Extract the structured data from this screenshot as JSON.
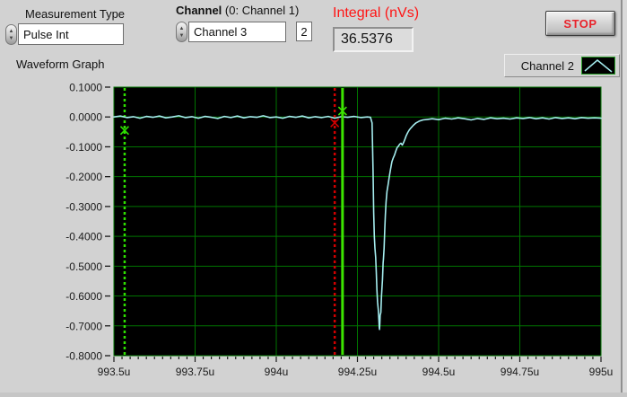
{
  "header": {
    "measurement": {
      "label": "Measurement Type",
      "value": "Pulse Int"
    },
    "channel": {
      "label_bold": "Channel",
      "label_rest": " (0: Channel 1)",
      "value": "Channel 3",
      "index_value": "2"
    },
    "integral": {
      "label": "Integral (nVs)",
      "value": "36.5376",
      "label_color": "#ff1414"
    },
    "stop_button": {
      "label": "STOP",
      "text_color": "#e8232b"
    }
  },
  "graph": {
    "title": "Waveform Graph",
    "legend": {
      "label": "Channel 2",
      "swatch_icon": "waveform-peak-icon"
    }
  },
  "chart_data": {
    "type": "line",
    "title": "Waveform Graph",
    "xlabel": "",
    "ylabel": "",
    "x_unit": "u",
    "xlim": [
      993.5,
      995.0
    ],
    "ylim": [
      -0.8,
      0.1
    ],
    "grid": true,
    "legend_position": "top-right",
    "x_ticks": [
      993.5,
      993.75,
      994,
      994.25,
      994.5,
      994.75,
      995
    ],
    "x_tick_labels": [
      "993.5u",
      "993.75u",
      "994u",
      "994.25u",
      "994.5u",
      "994.75u",
      "995u"
    ],
    "x_minor_step": 0.025,
    "y_ticks": [
      0.1,
      0.0,
      -0.1,
      -0.2,
      -0.3,
      -0.4,
      -0.5,
      -0.6,
      -0.7,
      -0.8
    ],
    "y_tick_labels": [
      "0.1000",
      "0.0000",
      "-0.1000",
      "-0.2000",
      "-0.3000",
      "-0.4000",
      "-0.5000",
      "-0.6000",
      "-0.7000",
      "-0.8000"
    ],
    "colors": {
      "plot_bg": "#000000",
      "grid": "#007400",
      "border": "#0d4d0d",
      "trace": "#a5edef",
      "tick": "#1a1a1a"
    },
    "cursors": [
      {
        "name": "cursor-green-dotted",
        "t": 993.533,
        "style": "dotted",
        "color": "#2ee000",
        "marker": [
          993.533,
          -0.045
        ]
      },
      {
        "name": "cursor-red-dotted",
        "t": 994.18,
        "style": "dotted",
        "color": "#d10000",
        "marker": [
          994.18,
          -0.02
        ]
      },
      {
        "name": "cursor-green-solid",
        "t": 994.204,
        "style": "solid",
        "color": "#3ce300",
        "marker": [
          994.204,
          0.02
        ]
      }
    ],
    "series": [
      {
        "name": "Channel 2",
        "color": "#a5edef",
        "points": [
          [
            993.5,
            0
          ],
          [
            993.52,
            0.003
          ],
          [
            993.54,
            -0.002
          ],
          [
            993.56,
            0.001
          ],
          [
            993.58,
            -0.004
          ],
          [
            993.6,
            0.002
          ],
          [
            993.62,
            -0.001
          ],
          [
            993.64,
            0.003
          ],
          [
            993.66,
            -0.003
          ],
          [
            993.68,
            0
          ],
          [
            993.7,
            0.004
          ],
          [
            993.72,
            -0.002
          ],
          [
            993.74,
            0.001
          ],
          [
            993.76,
            -0.004
          ],
          [
            993.78,
            0.002
          ],
          [
            993.8,
            -0.001
          ],
          [
            993.82,
            -0.005
          ],
          [
            993.84,
            0.002
          ],
          [
            993.86,
            -0.002
          ],
          [
            993.88,
            0.003
          ],
          [
            993.9,
            -0.003
          ],
          [
            993.92,
            0.001
          ],
          [
            993.94,
            -0.001
          ],
          [
            993.96,
            0.004
          ],
          [
            993.98,
            -0.002
          ],
          [
            994,
            0
          ],
          [
            994.02,
            -0.004
          ],
          [
            994.04,
            0.002
          ],
          [
            994.06,
            -0.001
          ],
          [
            994.08,
            0.003
          ],
          [
            994.1,
            -0.003
          ],
          [
            994.12,
            0.001
          ],
          [
            994.14,
            -0.002
          ],
          [
            994.16,
            0.002
          ],
          [
            994.18,
            -0.004
          ],
          [
            994.2,
            0.001
          ],
          [
            994.22,
            -0.001
          ],
          [
            994.24,
            0.002
          ],
          [
            994.26,
            -0.002
          ],
          [
            994.28,
            0
          ],
          [
            994.29,
            -0.001
          ],
          [
            994.295,
            -0.02
          ],
          [
            994.298,
            -0.18
          ],
          [
            994.3,
            -0.32
          ],
          [
            994.302,
            -0.4
          ],
          [
            994.304,
            -0.44
          ],
          [
            994.306,
            -0.47
          ],
          [
            994.308,
            -0.52
          ],
          [
            994.31,
            -0.58
          ],
          [
            994.312,
            -0.62
          ],
          [
            994.314,
            -0.645
          ],
          [
            994.316,
            -0.68
          ],
          [
            994.317,
            -0.705
          ],
          [
            994.318,
            -0.712
          ],
          [
            994.319,
            -0.69
          ],
          [
            994.32,
            -0.665
          ],
          [
            994.322,
            -0.655
          ],
          [
            994.324,
            -0.6
          ],
          [
            994.326,
            -0.565
          ],
          [
            994.327,
            -0.545
          ],
          [
            994.329,
            -0.49
          ],
          [
            994.33,
            -0.475
          ],
          [
            994.332,
            -0.44
          ],
          [
            994.334,
            -0.38
          ],
          [
            994.336,
            -0.33
          ],
          [
            994.338,
            -0.285
          ],
          [
            994.341,
            -0.25
          ],
          [
            994.344,
            -0.23
          ],
          [
            994.348,
            -0.2
          ],
          [
            994.352,
            -0.175
          ],
          [
            994.356,
            -0.15
          ],
          [
            994.36,
            -0.138
          ],
          [
            994.364,
            -0.128
          ],
          [
            994.368,
            -0.115
          ],
          [
            994.372,
            -0.103
          ],
          [
            994.376,
            -0.098
          ],
          [
            994.38,
            -0.091
          ],
          [
            994.384,
            -0.088
          ],
          [
            994.388,
            -0.094
          ],
          [
            994.392,
            -0.086
          ],
          [
            994.396,
            -0.075
          ],
          [
            994.4,
            -0.063
          ],
          [
            994.405,
            -0.052
          ],
          [
            994.41,
            -0.043
          ],
          [
            994.416,
            -0.035
          ],
          [
            994.422,
            -0.028
          ],
          [
            994.43,
            -0.02
          ],
          [
            994.44,
            -0.014
          ],
          [
            994.452,
            -0.01
          ],
          [
            994.466,
            -0.008
          ],
          [
            994.48,
            -0.006
          ],
          [
            994.5,
            -0.009
          ],
          [
            994.52,
            -0.004
          ],
          [
            994.54,
            -0.007
          ],
          [
            994.56,
            -0.003
          ],
          [
            994.58,
            -0.006
          ],
          [
            994.6,
            -0.01
          ],
          [
            994.62,
            -0.005
          ],
          [
            994.64,
            -0.008
          ],
          [
            994.66,
            -0.003
          ],
          [
            994.68,
            -0.006
          ],
          [
            994.7,
            -0.004
          ],
          [
            994.72,
            -0.007
          ],
          [
            994.74,
            -0.003
          ],
          [
            994.76,
            -0.005
          ],
          [
            994.78,
            -0.002
          ],
          [
            994.8,
            -0.006
          ],
          [
            994.82,
            -0.003
          ],
          [
            994.84,
            -0.007
          ],
          [
            994.86,
            -0.002
          ],
          [
            994.88,
            -0.005
          ],
          [
            994.9,
            -0.003
          ],
          [
            994.92,
            -0.006
          ],
          [
            994.94,
            -0.002
          ],
          [
            994.96,
            -0.004
          ],
          [
            994.98,
            -0.003
          ],
          [
            995,
            -0.004
          ]
        ]
      }
    ]
  }
}
